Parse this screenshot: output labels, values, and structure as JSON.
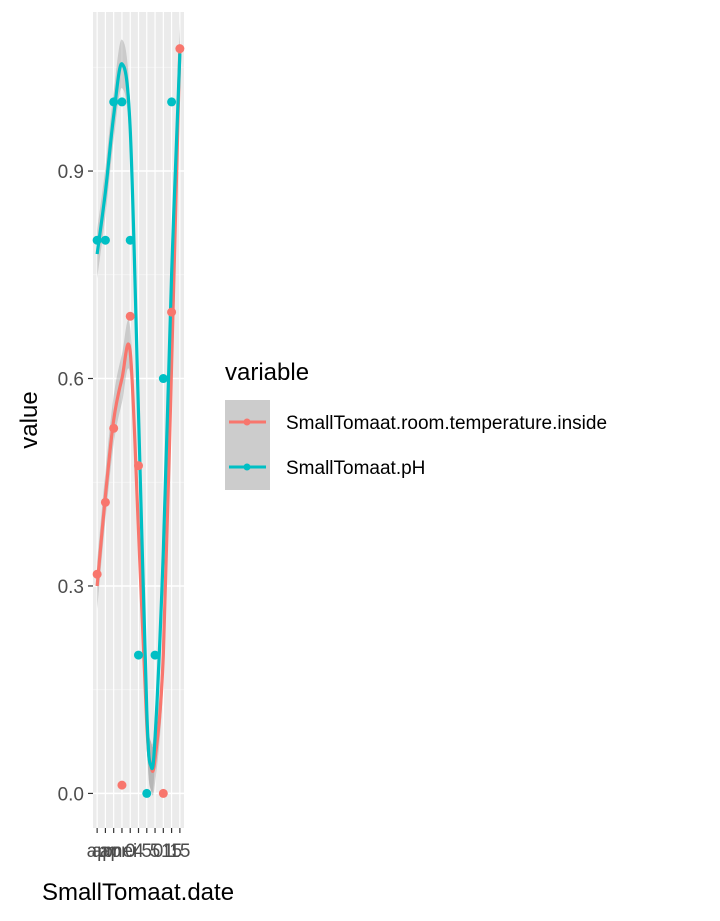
{
  "chart_data": {
    "type": "line",
    "xlabel": "SmallTomaat.date",
    "ylabel": "value",
    "x_tick_labels": [
      "ap",
      "apr",
      "apr",
      "mei",
      "0",
      "4",
      "5",
      "5",
      "01",
      "15",
      "15"
    ],
    "ylim": [
      -0.05,
      1.13
    ],
    "y_ticks": [
      0.0,
      0.3,
      0.6,
      0.9
    ],
    "y_tick_labels": [
      "0.0",
      "0.3",
      "0.6",
      "0.9"
    ],
    "grid": true,
    "legend": {
      "title": "variable",
      "position": "right",
      "entries": [
        "SmallTomaat.room.temperature.inside",
        "SmallTomaat.pH"
      ]
    },
    "series": [
      {
        "name": "SmallTomaat.room.temperature.inside",
        "color": "#F8766D",
        "points": [
          {
            "x": 1,
            "y": 0.317
          },
          {
            "x": 2,
            "y": 0.421
          },
          {
            "x": 3,
            "y": 0.528
          },
          {
            "x": 4,
            "y": 0.012
          },
          {
            "x": 5,
            "y": 0.69
          },
          {
            "x": 6,
            "y": 0.474
          },
          {
            "x": 9,
            "y": 0.0
          },
          {
            "x": 10,
            "y": 0.696
          },
          {
            "x": 11,
            "y": 1.077
          }
        ],
        "smooth": [
          {
            "x": 1,
            "y": 0.3
          },
          {
            "x": 2,
            "y": 0.43
          },
          {
            "x": 3,
            "y": 0.54
          },
          {
            "x": 4,
            "y": 0.6
          },
          {
            "x": 5,
            "y": 0.638
          },
          {
            "x": 6,
            "y": 0.38
          },
          {
            "x": 7,
            "y": 0.1
          },
          {
            "x": 7.5,
            "y": 0.04
          },
          {
            "x": 8,
            "y": 0.05
          },
          {
            "x": 9,
            "y": 0.2
          },
          {
            "x": 10,
            "y": 0.62
          },
          {
            "x": 11,
            "y": 1.08
          }
        ]
      },
      {
        "name": "SmallTomaat.pH",
        "color": "#00BFC4",
        "points": [
          {
            "x": 1,
            "y": 0.8
          },
          {
            "x": 2,
            "y": 0.8
          },
          {
            "x": 3,
            "y": 1.0
          },
          {
            "x": 4,
            "y": 1.0
          },
          {
            "x": 5,
            "y": 0.8
          },
          {
            "x": 6,
            "y": 0.2
          },
          {
            "x": 7,
            "y": 0.0
          },
          {
            "x": 8,
            "y": 0.2
          },
          {
            "x": 9,
            "y": 0.6
          },
          {
            "x": 10,
            "y": 1.0
          }
        ],
        "smooth": [
          {
            "x": 1,
            "y": 0.78
          },
          {
            "x": 2,
            "y": 0.87
          },
          {
            "x": 3,
            "y": 0.98
          },
          {
            "x": 4,
            "y": 1.055
          },
          {
            "x": 5,
            "y": 0.96
          },
          {
            "x": 6,
            "y": 0.55
          },
          {
            "x": 7,
            "y": 0.12
          },
          {
            "x": 7.5,
            "y": 0.04
          },
          {
            "x": 8,
            "y": 0.08
          },
          {
            "x": 9,
            "y": 0.35
          },
          {
            "x": 10,
            "y": 0.75
          },
          {
            "x": 11,
            "y": 1.07
          }
        ]
      }
    ]
  }
}
